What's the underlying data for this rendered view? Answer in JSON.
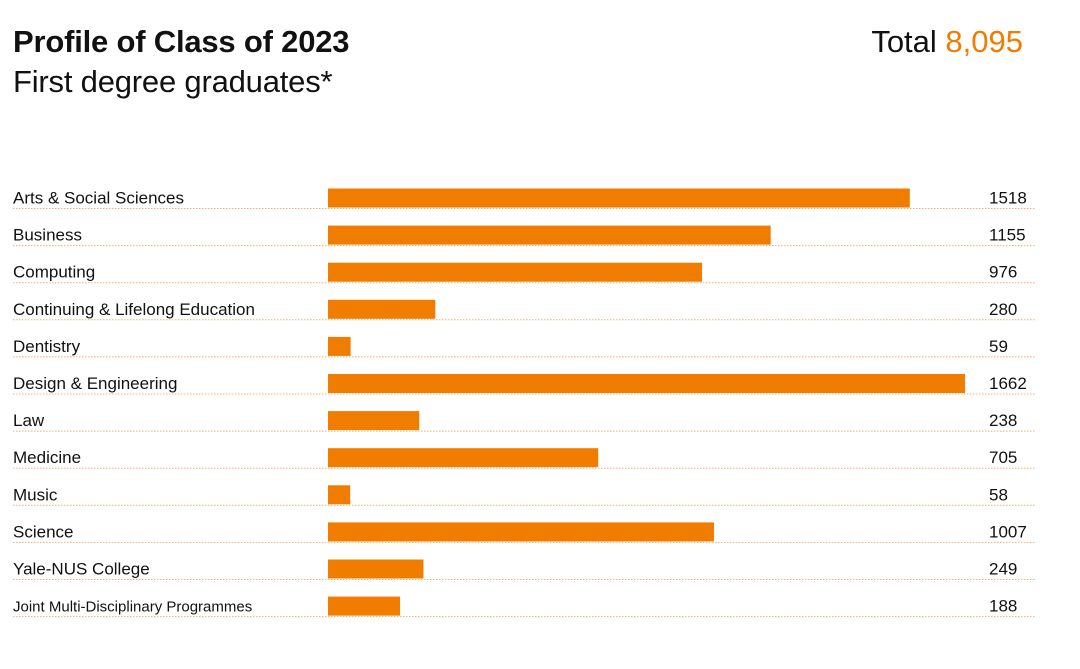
{
  "header": {
    "title": "Profile of Class of 2023",
    "subtitle": "First degree graduates*",
    "total_label": "Total",
    "total_value": "8,095"
  },
  "colors": {
    "bar": "#f07c00",
    "accent": "#f07c00",
    "divider": "#f0b070"
  },
  "chart_data": {
    "type": "bar",
    "orientation": "horizontal",
    "title": "Profile of Class of 2023",
    "subtitle": "First degree graduates*",
    "xlim": [
      0,
      1662
    ],
    "grid": false,
    "categories": [
      "Arts & Social Sciences",
      "Business",
      "Computing",
      "Continuing & Lifelong Education",
      "Dentistry",
      "Design & Engineering",
      "Law",
      "Medicine",
      "Music",
      "Science",
      "Yale-NUS College",
      "Joint Multi-Disciplinary Programmes"
    ],
    "values": [
      1518,
      1155,
      976,
      280,
      59,
      1662,
      238,
      705,
      58,
      1007,
      249,
      188
    ]
  }
}
